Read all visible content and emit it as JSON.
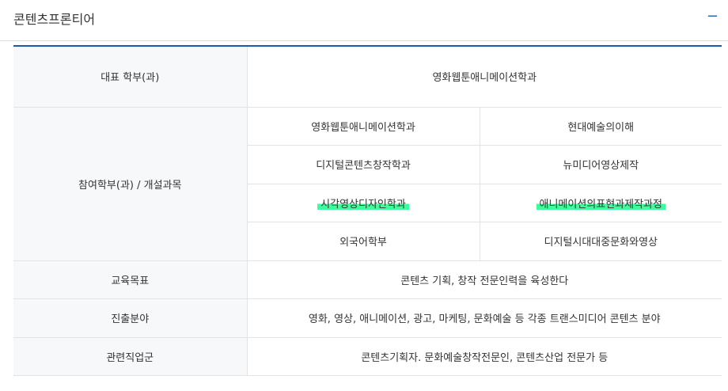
{
  "section": {
    "title": "콘텐츠프론티어",
    "collapse_icon": "minus-icon",
    "collapse_label": "−"
  },
  "table": {
    "rep_label": "대표 학부(과)",
    "rep_value": "영화웹툰애니메이션학과",
    "part_label": "참여학부(과) / 개설과목",
    "participants": [
      {
        "dept": "영화웹툰애니메이션학과",
        "course": "현대예술의이해"
      },
      {
        "dept": "디지털콘텐츠창작학과",
        "course": "뉴미디어영상제작"
      },
      {
        "dept": "시각영상디자인학과",
        "course": "애니메이션의표현과제작과정",
        "highlighted": true
      },
      {
        "dept": "외국어학부",
        "course": "디지털시대대중문화와영상"
      }
    ],
    "goal_label": "교육목표",
    "goal_value": "콘텐츠 기획, 창작 전문인력을 육성한다",
    "career_label": "진출분야",
    "career_value": "영화, 영상, 애니메이션, 광고, 마케팅, 문화예술 등 각종 트랜스미디어 콘텐츠 분야",
    "jobs_label": "관련직업군",
    "jobs_value": "콘텐츠기획자. 문화예술창작전문인, 콘텐츠산업 전문가 등"
  },
  "colors": {
    "accent": "#1a5cab",
    "highlight": "#3dfc9c"
  }
}
